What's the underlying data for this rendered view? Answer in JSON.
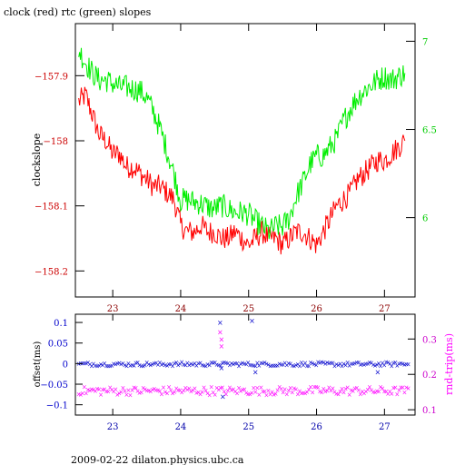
{
  "title": "clock (red) rtc (green) slopes",
  "footer": "2009-02-22  dilaton.physics.ubc.ca",
  "colors": {
    "clock": "#ff0000",
    "rtc": "#00ee00",
    "offset": "#0000cc",
    "rndtrip": "#ff00ff",
    "axis": "#000000"
  },
  "chart_data": [
    {
      "type": "line",
      "title": "clock (red) rtc (green) slopes",
      "ylabel": "clockslope",
      "xlim": [
        22.45,
        27.45
      ],
      "ylim_left": [
        -158.24,
        -157.82
      ],
      "ylim_right": [
        5.55,
        7.1
      ],
      "x_ticks": [
        "23",
        "24",
        "25",
        "26",
        "27"
      ],
      "y_ticks_left": [
        "-157.9",
        "-158",
        "-158.1",
        "-158.2"
      ],
      "y_ticks_right": [
        "7",
        "6.5",
        "6"
      ],
      "grid": false,
      "series": [
        {
          "name": "clock",
          "axis": "left",
          "color": "#ff0000",
          "x": [
            22.5,
            22.6,
            22.7,
            22.8,
            22.9,
            23.0,
            23.1,
            23.2,
            23.3,
            23.4,
            23.5,
            23.6,
            23.7,
            23.8,
            23.9,
            24.0,
            24.1,
            24.2,
            24.3,
            24.4,
            24.5,
            24.6,
            24.7,
            24.8,
            24.9,
            25.0,
            25.1,
            25.2,
            25.3,
            25.4,
            25.5,
            25.6,
            25.7,
            25.8,
            25.9,
            26.0,
            26.1,
            26.2,
            26.3,
            26.4,
            26.5,
            26.6,
            26.7,
            26.8,
            26.9,
            27.0,
            27.1,
            27.2,
            27.3
          ],
          "y": [
            -157.94,
            -157.93,
            -157.96,
            -157.99,
            -158.0,
            -158.02,
            -158.02,
            -158.04,
            -158.04,
            -158.05,
            -158.06,
            -158.07,
            -158.07,
            -158.08,
            -158.09,
            -158.13,
            -158.14,
            -158.14,
            -158.13,
            -158.14,
            -158.14,
            -158.15,
            -158.15,
            -158.14,
            -158.15,
            -158.16,
            -158.15,
            -158.14,
            -158.15,
            -158.15,
            -158.16,
            -158.15,
            -158.14,
            -158.14,
            -158.15,
            -158.16,
            -158.14,
            -158.12,
            -158.1,
            -158.09,
            -158.08,
            -158.06,
            -158.05,
            -158.04,
            -158.03,
            -158.03,
            -158.02,
            -158.01,
            -158.0
          ]
        },
        {
          "name": "rtc",
          "axis": "right",
          "color": "#00ee00",
          "x": [
            22.5,
            22.6,
            22.7,
            22.8,
            22.9,
            23.0,
            23.1,
            23.2,
            23.3,
            23.4,
            23.5,
            23.6,
            23.7,
            23.8,
            23.9,
            24.0,
            24.1,
            24.2,
            24.3,
            24.4,
            24.5,
            24.6,
            24.7,
            24.8,
            24.9,
            25.0,
            25.1,
            25.2,
            25.3,
            25.4,
            25.5,
            25.6,
            25.7,
            25.8,
            25.9,
            26.0,
            26.1,
            26.2,
            26.3,
            26.4,
            26.5,
            26.6,
            26.7,
            26.8,
            26.9,
            27.0,
            27.1,
            27.2,
            27.3
          ],
          "y": [
            6.95,
            6.88,
            6.82,
            6.78,
            6.78,
            6.76,
            6.74,
            6.74,
            6.73,
            6.72,
            6.68,
            6.6,
            6.5,
            6.38,
            6.25,
            6.1,
            6.1,
            6.09,
            6.08,
            6.06,
            6.05,
            6.07,
            6.05,
            6.03,
            6.03,
            6.02,
            5.98,
            5.95,
            5.92,
            5.95,
            5.95,
            6.0,
            6.12,
            6.2,
            6.3,
            6.35,
            6.35,
            6.4,
            6.45,
            6.55,
            6.62,
            6.68,
            6.72,
            6.75,
            6.78,
            6.8,
            6.78,
            6.8,
            6.82
          ]
        }
      ]
    },
    {
      "type": "scatter",
      "ylabel_left": "offset(ms)",
      "ylabel_right": "rnd-trip(ms)",
      "xlim": [
        22.45,
        27.45
      ],
      "ylim_left": [
        -0.125,
        0.12
      ],
      "ylim_right": [
        0.085,
        0.37
      ],
      "x_ticks": [
        "23",
        "24",
        "25",
        "26",
        "27"
      ],
      "y_ticks_left": [
        "0.1",
        "0.05",
        "0",
        "-0.05",
        "-0.1"
      ],
      "y_ticks_right": [
        "0.3",
        "0.2",
        "0.1"
      ],
      "series": [
        {
          "name": "offset",
          "axis": "left",
          "color": "#0000cc",
          "x_range": [
            22.5,
            27.35
          ],
          "baseline": 0.0,
          "spread": 0.005,
          "outliers": [
            [
              24.58,
              0.1
            ],
            [
              24.6,
              -0.01
            ],
            [
              24.62,
              -0.08
            ],
            [
              25.05,
              0.105
            ],
            [
              25.1,
              -0.02
            ],
            [
              26.9,
              -0.02
            ]
          ]
        },
        {
          "name": "rnd-trip",
          "axis": "right",
          "color": "#ff00ff",
          "x_range": [
            22.5,
            27.35
          ],
          "baseline": 0.155,
          "spread": 0.012,
          "outliers": [
            [
              24.58,
              0.32
            ],
            [
              24.6,
              0.3
            ],
            [
              24.6,
              0.28
            ]
          ]
        }
      ]
    }
  ]
}
